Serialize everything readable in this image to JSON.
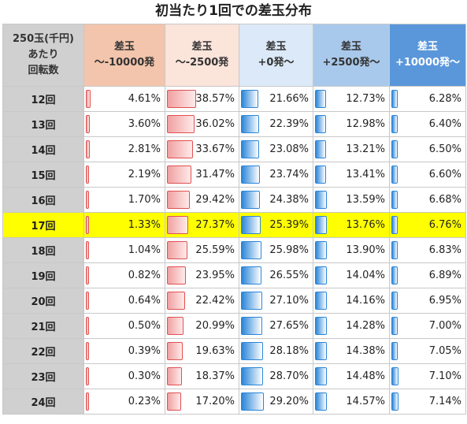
{
  "title": "初当たり1回での差玉分布",
  "header": {
    "row_label": [
      "250玉(千円)",
      "あたり",
      "回転数"
    ],
    "columns": [
      {
        "line1": "差玉",
        "line2": "～-10000発"
      },
      {
        "line1": "差玉",
        "line2": "～-2500発"
      },
      {
        "line1": "差玉",
        "line2": "+0発～"
      },
      {
        "line1": "差玉",
        "line2": "+2500発～"
      },
      {
        "line1": "差玉",
        "line2": "+10000発～"
      }
    ]
  },
  "highlight_row": "17回",
  "rows": [
    {
      "label": "12回",
      "values": [
        "4.61%",
        "38.57%",
        "21.66%",
        "12.73%",
        "6.28%"
      ],
      "pct": [
        4.61,
        38.57,
        21.66,
        12.73,
        6.28
      ]
    },
    {
      "label": "13回",
      "values": [
        "3.60%",
        "36.02%",
        "22.39%",
        "12.98%",
        "6.40%"
      ],
      "pct": [
        3.6,
        36.02,
        22.39,
        12.98,
        6.4
      ]
    },
    {
      "label": "14回",
      "values": [
        "2.81%",
        "33.67%",
        "23.08%",
        "13.21%",
        "6.50%"
      ],
      "pct": [
        2.81,
        33.67,
        23.08,
        13.21,
        6.5
      ]
    },
    {
      "label": "15回",
      "values": [
        "2.19%",
        "31.47%",
        "23.74%",
        "13.41%",
        "6.60%"
      ],
      "pct": [
        2.19,
        31.47,
        23.74,
        13.41,
        6.6
      ]
    },
    {
      "label": "16回",
      "values": [
        "1.70%",
        "29.42%",
        "24.38%",
        "13.59%",
        "6.68%"
      ],
      "pct": [
        1.7,
        29.42,
        24.38,
        13.59,
        6.68
      ]
    },
    {
      "label": "17回",
      "values": [
        "1.33%",
        "27.37%",
        "25.39%",
        "13.76%",
        "6.76%"
      ],
      "pct": [
        1.33,
        27.37,
        25.39,
        13.76,
        6.76
      ]
    },
    {
      "label": "18回",
      "values": [
        "1.04%",
        "25.59%",
        "25.98%",
        "13.90%",
        "6.83%"
      ],
      "pct": [
        1.04,
        25.59,
        25.98,
        13.9,
        6.83
      ]
    },
    {
      "label": "19回",
      "values": [
        "0.82%",
        "23.95%",
        "26.55%",
        "14.04%",
        "6.89%"
      ],
      "pct": [
        0.82,
        23.95,
        26.55,
        14.04,
        6.89
      ]
    },
    {
      "label": "20回",
      "values": [
        "0.64%",
        "22.42%",
        "27.10%",
        "14.16%",
        "6.95%"
      ],
      "pct": [
        0.64,
        22.42,
        27.1,
        14.16,
        6.95
      ]
    },
    {
      "label": "21回",
      "values": [
        "0.50%",
        "20.99%",
        "27.65%",
        "14.28%",
        "7.00%"
      ],
      "pct": [
        0.5,
        20.99,
        27.65,
        14.28,
        7.0
      ]
    },
    {
      "label": "22回",
      "values": [
        "0.39%",
        "19.63%",
        "28.18%",
        "14.38%",
        "7.05%"
      ],
      "pct": [
        0.39,
        19.63,
        28.18,
        14.38,
        7.05
      ]
    },
    {
      "label": "23回",
      "values": [
        "0.30%",
        "18.37%",
        "28.70%",
        "14.48%",
        "7.10%"
      ],
      "pct": [
        0.3,
        18.37,
        28.7,
        14.48,
        7.1
      ]
    },
    {
      "label": "24回",
      "values": [
        "0.23%",
        "17.20%",
        "29.20%",
        "14.57%",
        "7.14%"
      ],
      "pct": [
        0.23,
        17.2,
        29.2,
        14.57,
        7.14
      ]
    }
  ],
  "colors": {
    "negative_bar": "#f0a0a0",
    "positive_bar": "#2a85d8",
    "highlight": "#ffff00"
  }
}
